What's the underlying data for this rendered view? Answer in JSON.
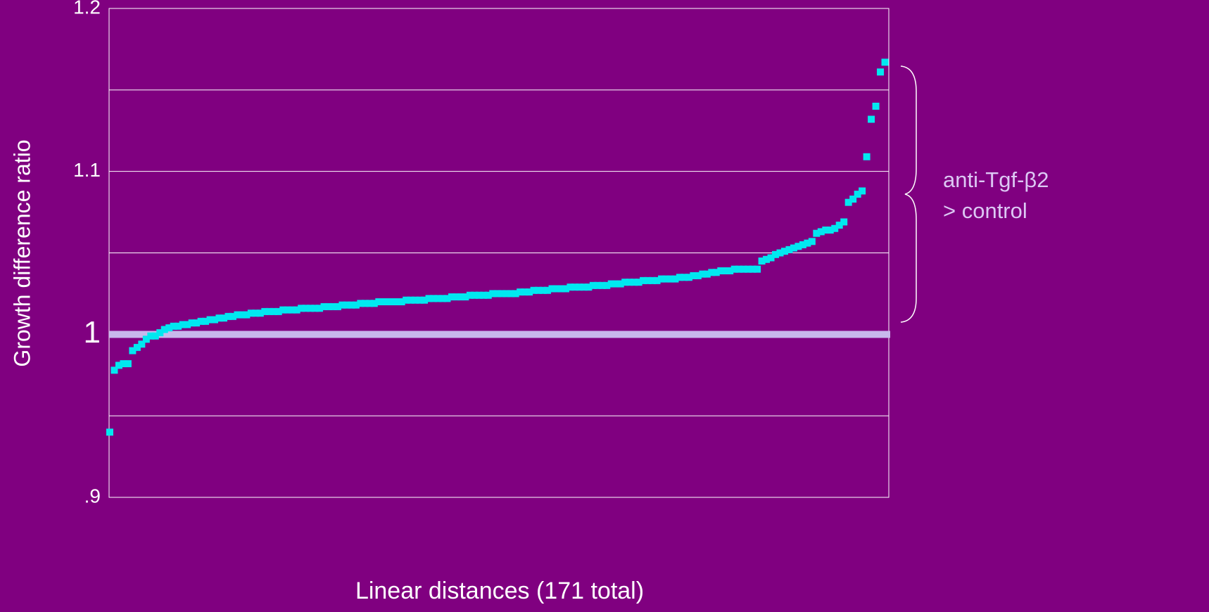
{
  "chart_data": {
    "type": "scatter",
    "xlabel": "Linear distances (171 total)",
    "ylabel": "Growth difference ratio",
    "ylim": [
      0.9,
      1.2
    ],
    "yticks": [
      {
        "value": 0.9,
        "label": ".9"
      },
      1,
      1.1,
      1.2
    ],
    "minor_grid": [
      0.95,
      1.05,
      1.15
    ],
    "reference_line": 1,
    "grid": true,
    "color": "#00e8f0",
    "reference_color": "#c8b8ec",
    "annotation": [
      "anti-Tgf-β2",
      "> control"
    ],
    "values": [
      0.94,
      0.978,
      0.981,
      0.982,
      0.982,
      0.99,
      0.992,
      0.994,
      0.997,
      0.999,
      0.999,
      1.001,
      1.003,
      1.004,
      1.005,
      1.005,
      1.006,
      1.006,
      1.007,
      1.007,
      1.008,
      1.008,
      1.009,
      1.009,
      1.01,
      1.01,
      1.011,
      1.011,
      1.012,
      1.012,
      1.012,
      1.013,
      1.013,
      1.013,
      1.014,
      1.014,
      1.014,
      1.014,
      1.015,
      1.015,
      1.015,
      1.015,
      1.016,
      1.016,
      1.016,
      1.016,
      1.016,
      1.017,
      1.017,
      1.017,
      1.017,
      1.018,
      1.018,
      1.018,
      1.018,
      1.019,
      1.019,
      1.019,
      1.019,
      1.02,
      1.02,
      1.02,
      1.02,
      1.02,
      1.02,
      1.021,
      1.021,
      1.021,
      1.021,
      1.021,
      1.022,
      1.022,
      1.022,
      1.022,
      1.022,
      1.023,
      1.023,
      1.023,
      1.023,
      1.024,
      1.024,
      1.024,
      1.024,
      1.024,
      1.025,
      1.025,
      1.025,
      1.025,
      1.025,
      1.025,
      1.026,
      1.026,
      1.026,
      1.027,
      1.027,
      1.027,
      1.027,
      1.028,
      1.028,
      1.028,
      1.028,
      1.029,
      1.029,
      1.029,
      1.029,
      1.029,
      1.03,
      1.03,
      1.03,
      1.03,
      1.031,
      1.031,
      1.031,
      1.032,
      1.032,
      1.032,
      1.032,
      1.033,
      1.033,
      1.033,
      1.033,
      1.034,
      1.034,
      1.034,
      1.034,
      1.035,
      1.035,
      1.035,
      1.036,
      1.036,
      1.037,
      1.037,
      1.038,
      1.038,
      1.039,
      1.039,
      1.039,
      1.04,
      1.04,
      1.04,
      1.04,
      1.04,
      1.04,
      1.045,
      1.046,
      1.047,
      1.049,
      1.05,
      1.051,
      1.052,
      1.053,
      1.054,
      1.055,
      1.056,
      1.057,
      1.062,
      1.063,
      1.064,
      1.064,
      1.065,
      1.067,
      1.069,
      1.081,
      1.083,
      1.086,
      1.088,
      1.109,
      1.132,
      1.14,
      1.161,
      1.167
    ]
  }
}
